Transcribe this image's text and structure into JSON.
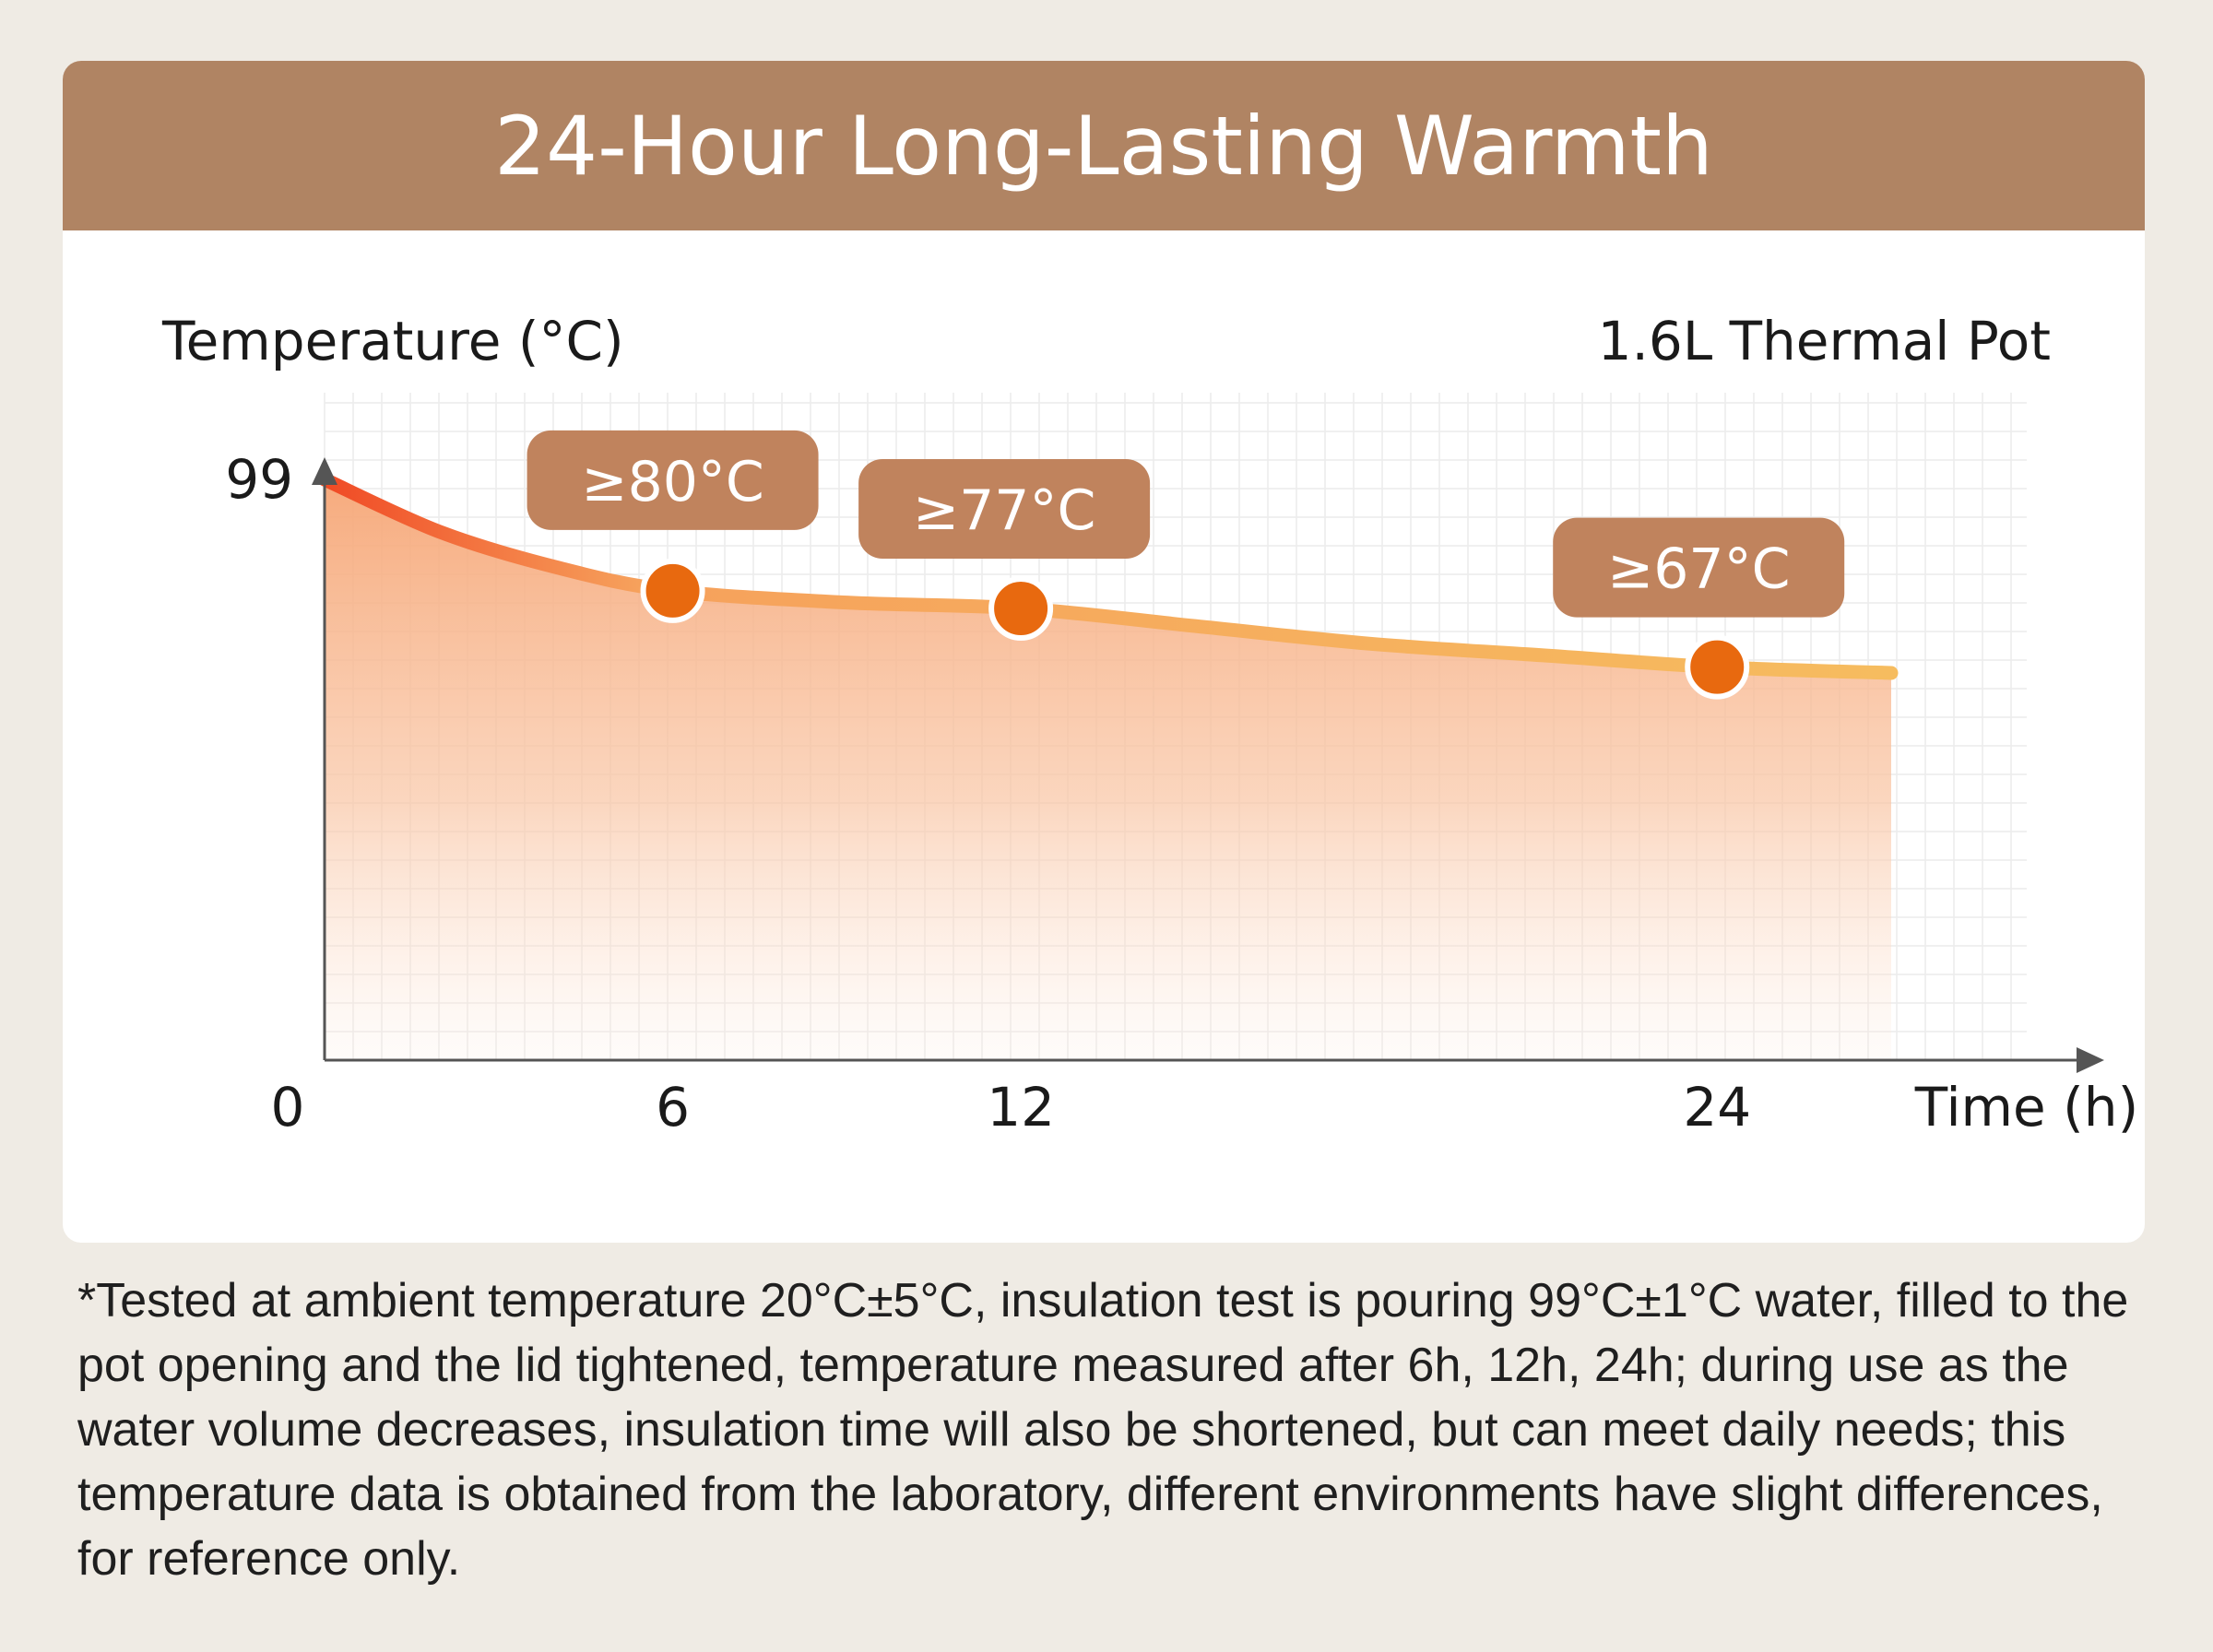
{
  "title": "24-Hour Long-Lasting Warmth",
  "colors": {
    "header_bg": "#b08463",
    "badge_bg": "#c0835d",
    "marker": "#e8690f",
    "line_start": "#f04a25",
    "line_end": "#f6bc5f",
    "fill": "#f6a676"
  },
  "chart_data": {
    "type": "area",
    "ylabel": "Temperature (°C)",
    "xlabel": "Time (h)",
    "series_label": "1.6L Thermal Pot",
    "x_ticks": [
      "0",
      "6",
      "12",
      "24"
    ],
    "y_ticks": [
      "99"
    ],
    "ylim": [
      0,
      99
    ],
    "grid": true,
    "curve": [
      {
        "x": 0,
        "y": 99
      },
      {
        "x": 2,
        "y": 90
      },
      {
        "x": 4,
        "y": 84
      },
      {
        "x": 6,
        "y": 80
      },
      {
        "x": 9,
        "y": 78
      },
      {
        "x": 12,
        "y": 77
      },
      {
        "x": 15,
        "y": 74
      },
      {
        "x": 18,
        "y": 71
      },
      {
        "x": 21,
        "y": 69
      },
      {
        "x": 24,
        "y": 67
      },
      {
        "x": 27,
        "y": 66
      }
    ],
    "markers": [
      {
        "x": 6,
        "y": 80,
        "label": "≥80°C"
      },
      {
        "x": 12,
        "y": 77,
        "label": "≥77°C"
      },
      {
        "x": 24,
        "y": 67,
        "label": "≥67°C"
      }
    ]
  },
  "footnote": "*Tested at ambient temperature 20°C±5°C, insulation test is pouring 99°C±1°C water, filled to the pot opening and the lid tightened, temperature measured after 6h, 12h, 24h; during use as the water volume decreases, insulation time will also be shortened, but can meet daily needs; this temperature data is obtained from the laboratory, different environments have slight differences, for reference only."
}
